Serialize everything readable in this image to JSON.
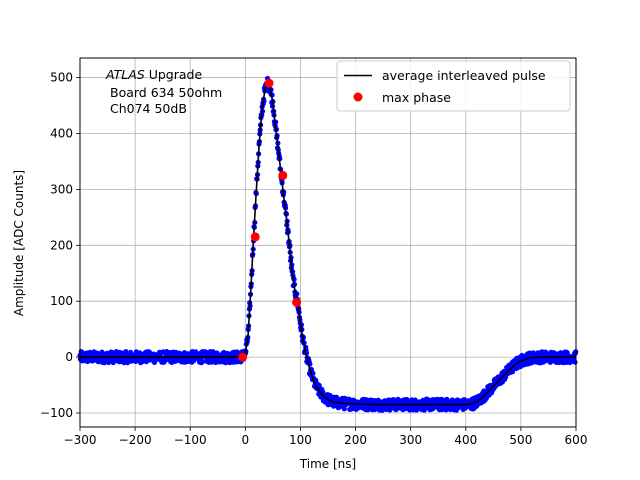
{
  "chart_data": {
    "type": "line",
    "xlabel": "Time [ns]",
    "ylabel": "Amplitude [ADC Counts]",
    "xlim": [
      -300,
      600
    ],
    "ylim": [
      -125,
      535
    ],
    "xticks": [
      -300,
      -200,
      -100,
      0,
      100,
      200,
      300,
      400,
      500,
      600
    ],
    "yticks": [
      -100,
      0,
      100,
      200,
      300,
      400,
      500
    ],
    "grid": true,
    "legend_position": "top-right",
    "annotation": {
      "atlas": "ATLAS",
      "line1_rest": "Upgrade",
      "line2": "Board 634 50ohm",
      "line3": "Ch074 50dB"
    },
    "series": [
      {
        "name": "average interleaved pulse",
        "style": "line",
        "color": "#000000",
        "x": [
          -300,
          -20,
          -10,
          0,
          5,
          10,
          15,
          20,
          25,
          30,
          35,
          40,
          45,
          50,
          55,
          60,
          65,
          70,
          75,
          80,
          85,
          90,
          95,
          100,
          105,
          110,
          115,
          120,
          125,
          130,
          140,
          150,
          160,
          170,
          180,
          200,
          250,
          300,
          350,
          400,
          410,
          420,
          430,
          440,
          450,
          460,
          470,
          480,
          490,
          500,
          510,
          520,
          540,
          560,
          600
        ],
        "y": [
          0,
          0,
          0,
          5,
          40,
          120,
          215,
          300,
          380,
          440,
          475,
          490,
          480,
          455,
          410,
          370,
          325,
          285,
          245,
          200,
          150,
          120,
          98,
          60,
          30,
          5,
          -15,
          -30,
          -45,
          -55,
          -68,
          -76,
          -80,
          -82,
          -83,
          -84,
          -85,
          -85,
          -85,
          -85,
          -84,
          -80,
          -72,
          -62,
          -52,
          -42,
          -32,
          -22,
          -13,
          -7,
          -3,
          -1,
          0,
          0,
          0
        ]
      },
      {
        "name": "samples",
        "style": "points",
        "color": "#0000ff",
        "description": "dense blue sample points along the average pulse with about ±10 ADC noise"
      },
      {
        "name": "max phase",
        "style": "points",
        "color": "#ff0000",
        "x": [
          -5,
          18,
          43,
          68,
          93
        ],
        "y": [
          0,
          215,
          490,
          325,
          98
        ]
      }
    ]
  }
}
